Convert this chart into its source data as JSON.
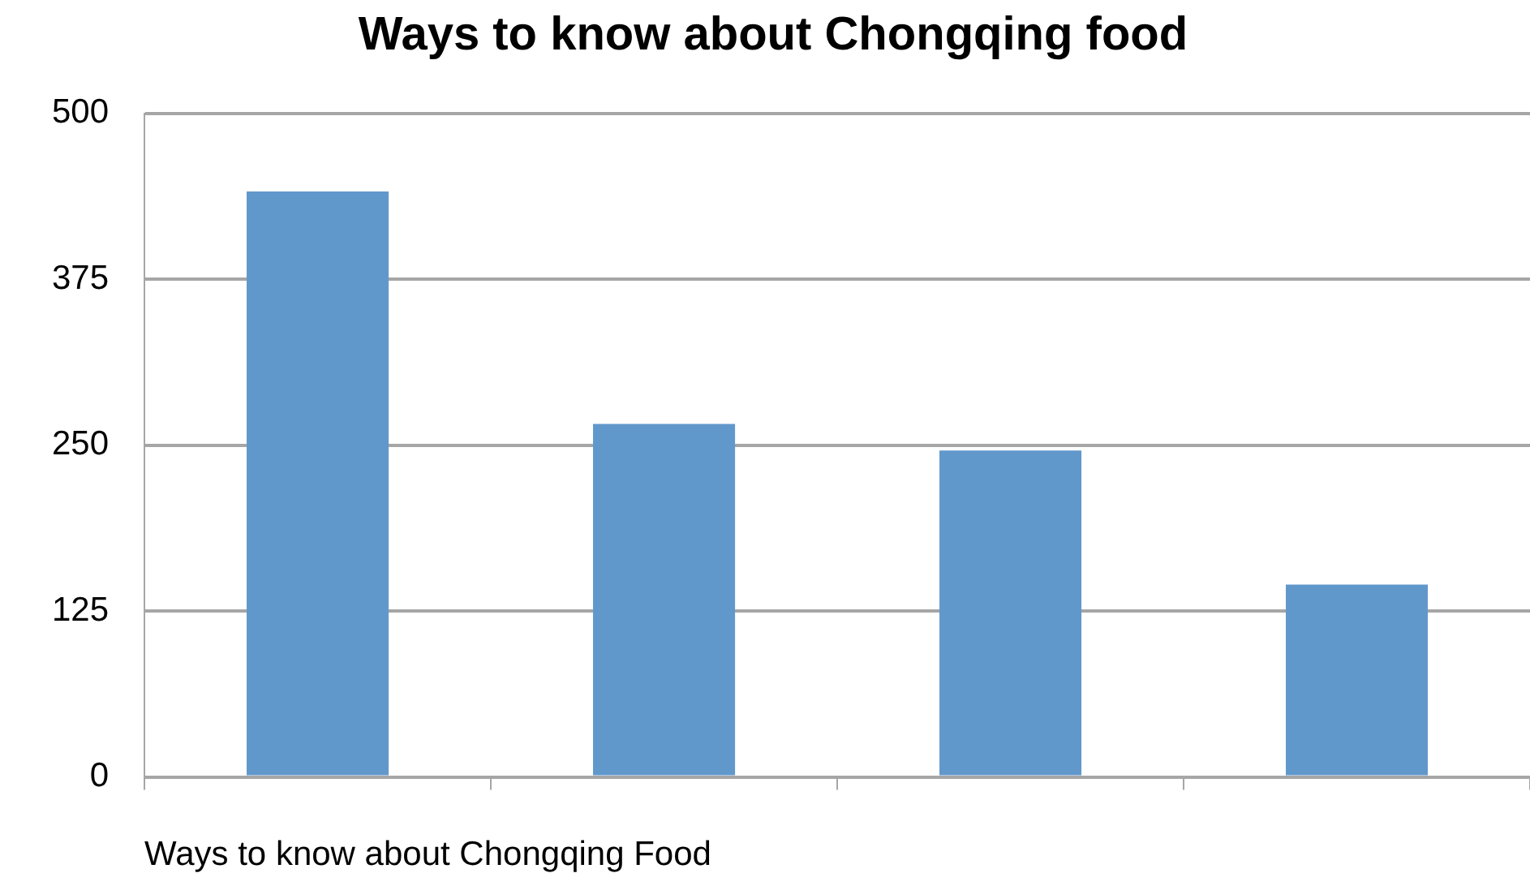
{
  "chart_data": {
    "type": "bar",
    "title": "Ways to know about Chongqing food",
    "xlabel": "Ways to know about Chongqing Food",
    "categories": [
      null,
      null,
      null,
      null
    ],
    "values": [
      441,
      266,
      246,
      145
    ],
    "color": "#6198cb",
    "ylim": [
      0,
      500
    ],
    "yticks": [
      0,
      125,
      250,
      375,
      500
    ],
    "grid": "y"
  }
}
